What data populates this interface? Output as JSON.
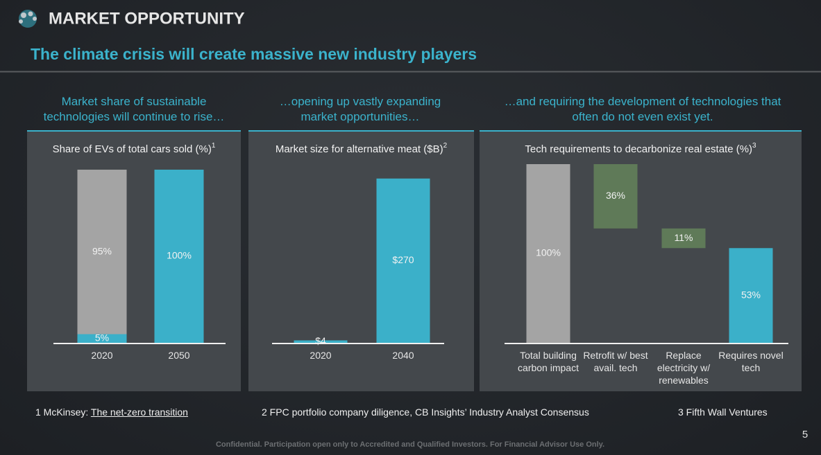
{
  "header": {
    "title": "MARKET OPPORTUNITY",
    "subtitle": "The climate crisis will create massive new industry players"
  },
  "columns": [
    "Market share of sustainable technologies will continue to rise…",
    "…opening up vastly expanding market opportunities…",
    "…and requiring the development of technologies that often do not even exist yet."
  ],
  "chart_data": [
    {
      "type": "bar",
      "stacked": true,
      "title": "Share of EVs of total cars sold (%)",
      "title_note": "1",
      "categories": [
        "2020",
        "2050"
      ],
      "series": [
        {
          "color": "#3bb0c9",
          "values": [
            5,
            100
          ],
          "value_labels": [
            "5%",
            "100%"
          ]
        },
        {
          "color": "#a4a4a4",
          "values": [
            95,
            null
          ],
          "value_labels": [
            "95%",
            null
          ]
        }
      ],
      "ylim": [
        0,
        100
      ]
    },
    {
      "type": "bar",
      "title": "Market size for alternative meat ($B)",
      "title_note": "2",
      "categories": [
        "2020",
        "2040"
      ],
      "values": [
        4,
        270
      ],
      "value_labels": [
        "$4",
        "$270"
      ],
      "color": "#3bb0c9",
      "ylim": [
        0,
        280
      ]
    },
    {
      "type": "waterfall",
      "title": "Tech requirements to decarbonize real estate (%)",
      "title_note": "3",
      "categories": [
        "Total building carbon impact",
        "Retrofit w/ best avail. tech",
        "Replace electricity w/ renewables",
        "Requires novel tech"
      ],
      "values": [
        100,
        36,
        11,
        53
      ],
      "value_labels": [
        "100%",
        "36%",
        "11%",
        "53%"
      ],
      "totals": [
        true,
        false,
        false,
        true
      ],
      "colors": [
        "#a4a4a4",
        "#5f7a58",
        "#5f7a58",
        "#3bb0c9"
      ],
      "ylim": [
        0,
        100
      ]
    }
  ],
  "footnotes": [
    {
      "text": "1 McKinsey:",
      "link": "The net-zero transition"
    },
    {
      "text": "2 FPC portfolio company diligence, CB Insights’ Industry Analyst Consensus"
    },
    {
      "text": "3 Fifth Wall Ventures"
    }
  ],
  "disclaimer": "Confidential. Participation open only to Accredited and Qualified Investors. For Financial Advisor Use Only.",
  "page_number": "5"
}
